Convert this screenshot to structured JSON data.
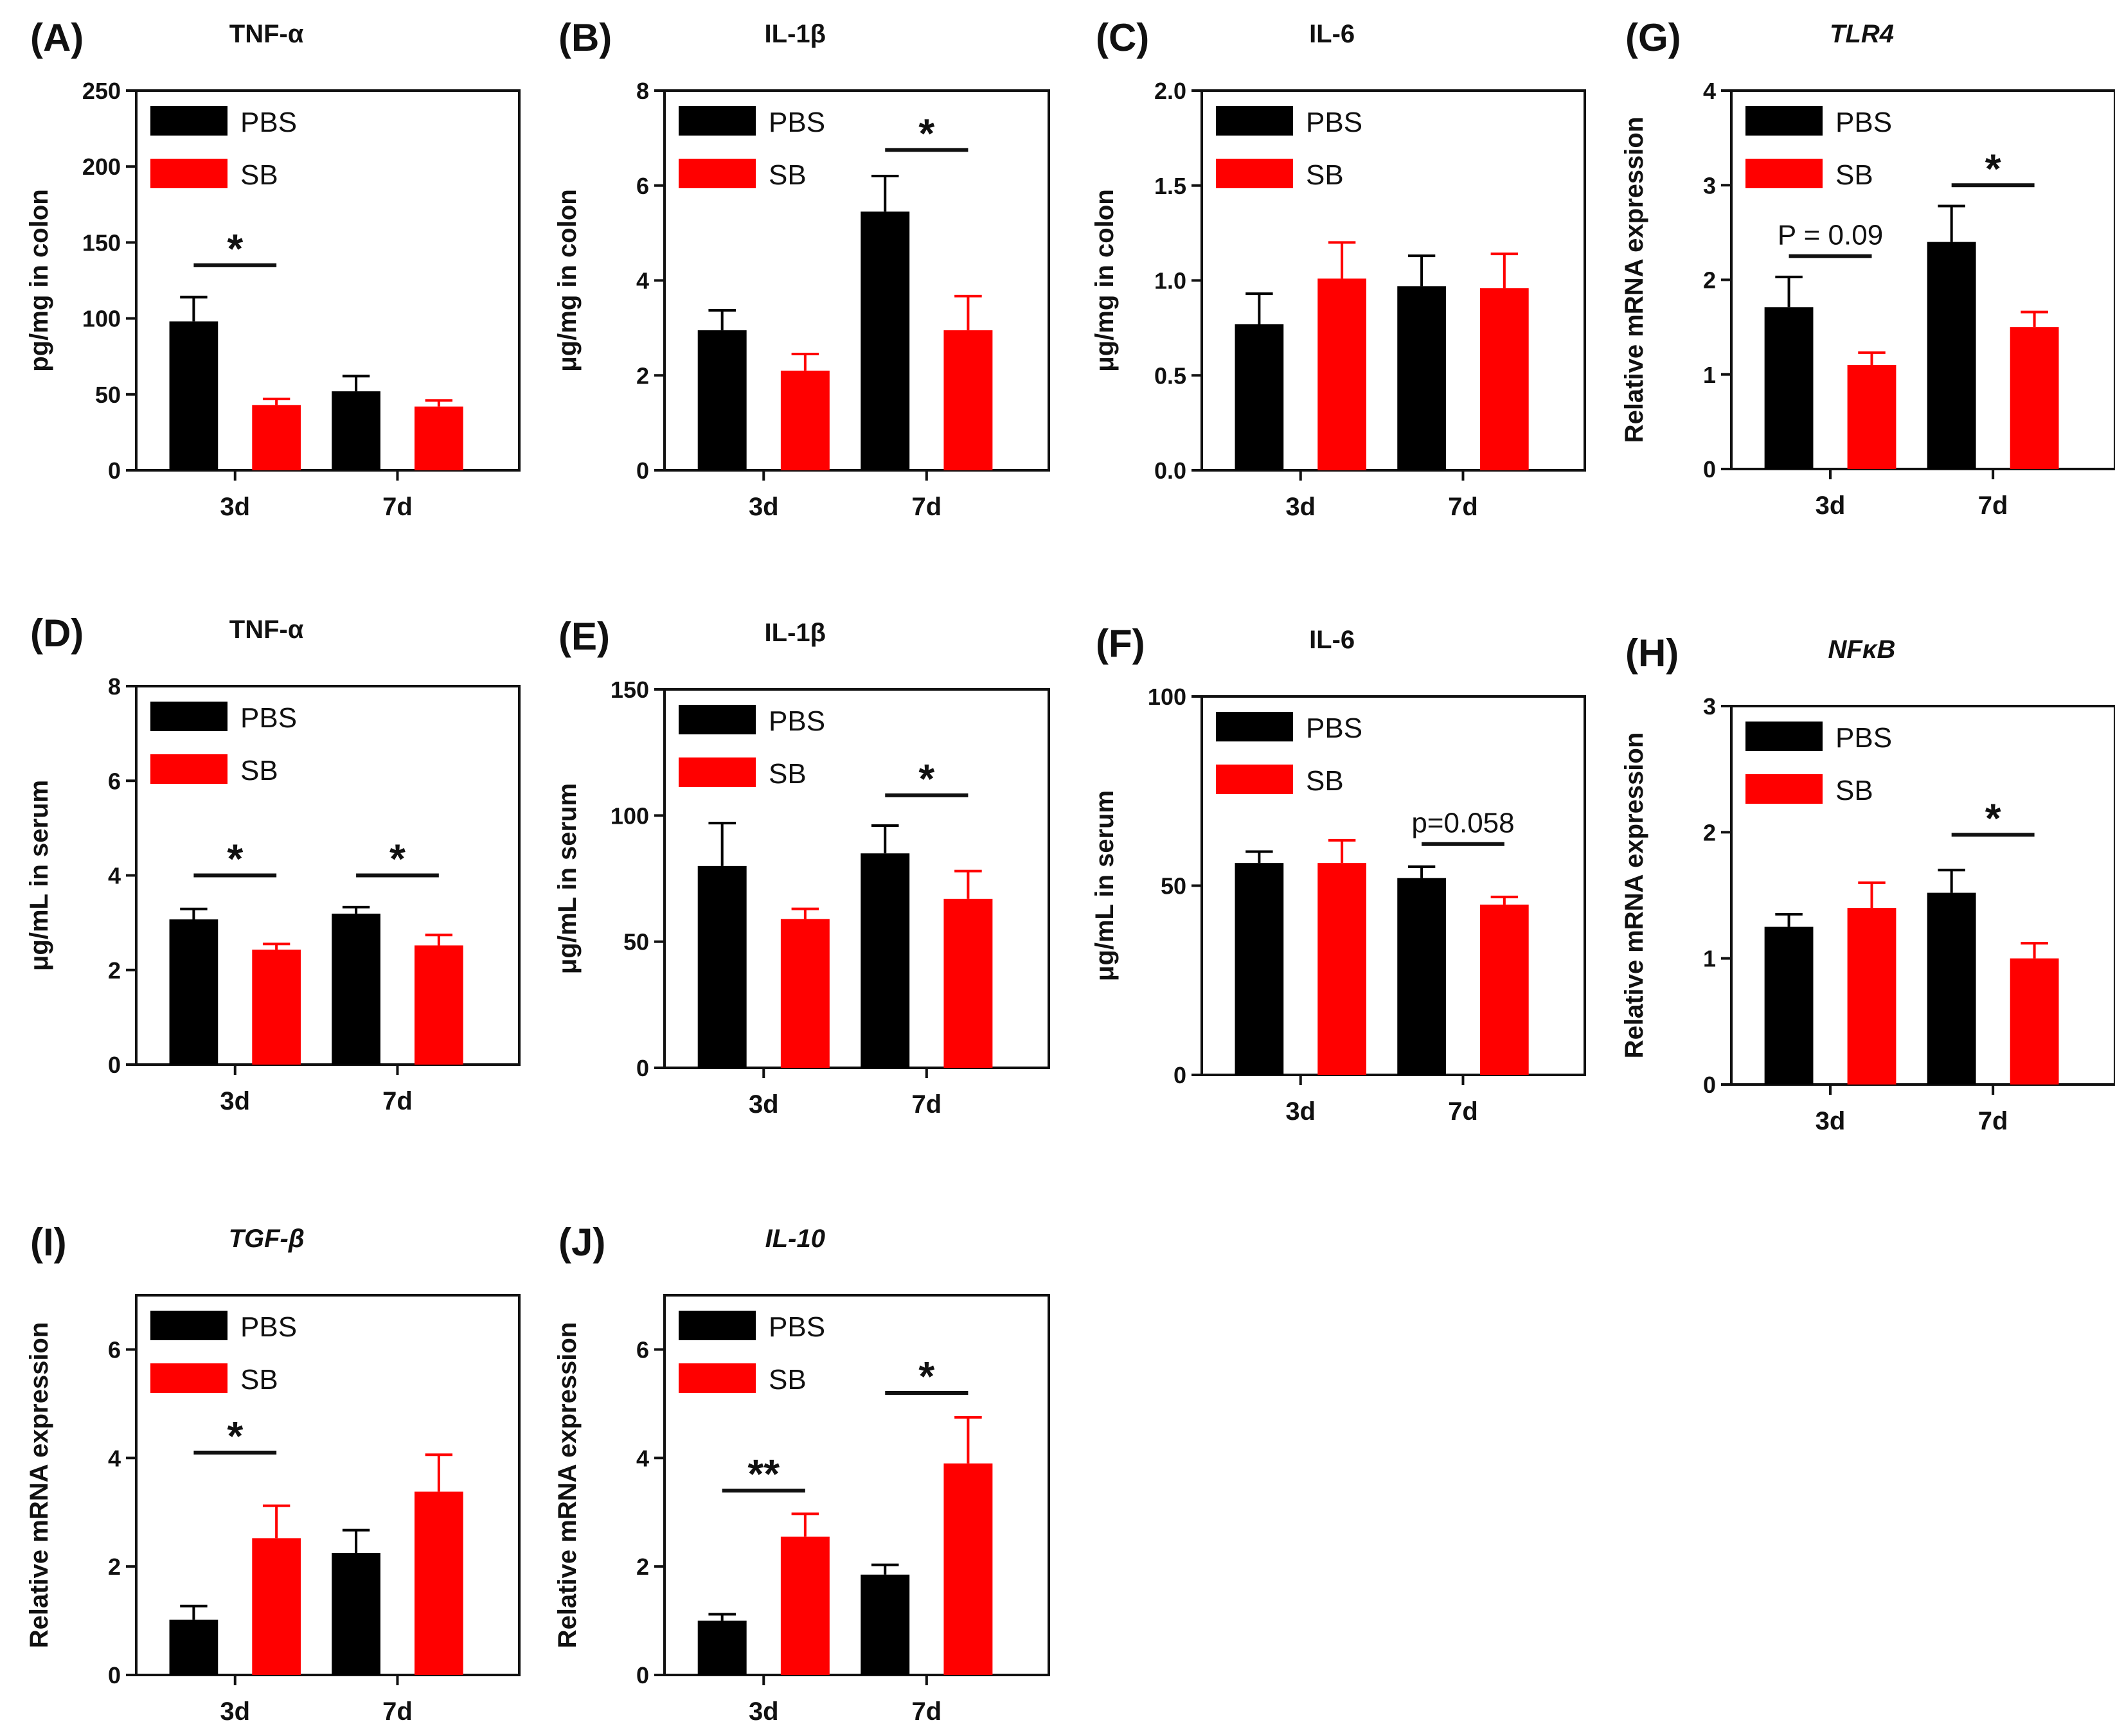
{
  "colors": {
    "PBS": "#000000",
    "SB": "#ff0000",
    "axis": "#111111"
  },
  "chart_data": [
    {
      "id": "A",
      "panel_label": "(A)",
      "title": "TNF-α",
      "title_italic": false,
      "type": "bar",
      "ylabel": "pg/mg in colon",
      "xlabel": "",
      "ylim": [
        0,
        250
      ],
      "yticks": [
        0,
        50,
        100,
        150,
        200,
        250
      ],
      "ytick_labels": [
        "0",
        "50",
        "100",
        "150",
        "200",
        "250"
      ],
      "categories": [
        "3d",
        "7d"
      ],
      "legend": [
        "PBS",
        "SB"
      ],
      "series": [
        {
          "name": "PBS",
          "values": [
            98,
            52
          ],
          "errors": [
            16,
            10
          ]
        },
        {
          "name": "SB",
          "values": [
            43,
            42
          ],
          "errors": [
            4,
            4
          ]
        }
      ],
      "significance": [
        {
          "category": "3d",
          "label": "*",
          "y": 135
        }
      ]
    },
    {
      "id": "B",
      "panel_label": "(B)",
      "title": "IL-1β",
      "title_italic": false,
      "type": "bar",
      "ylabel": "μg/mg in colon",
      "xlabel": "",
      "ylim": [
        0,
        8
      ],
      "yticks": [
        0,
        2,
        4,
        6,
        8
      ],
      "ytick_labels": [
        "0",
        "2",
        "4",
        "6",
        "8"
      ],
      "categories": [
        "3d",
        "7d"
      ],
      "legend": [
        "PBS",
        "SB"
      ],
      "series": [
        {
          "name": "PBS",
          "values": [
            2.95,
            5.45
          ],
          "errors": [
            0.42,
            0.75
          ]
        },
        {
          "name": "SB",
          "values": [
            2.1,
            2.95
          ],
          "errors": [
            0.35,
            0.72
          ]
        }
      ],
      "significance": [
        {
          "category": "7d",
          "label": "*",
          "y": 6.75
        }
      ]
    },
    {
      "id": "C",
      "panel_label": "(C)",
      "title": "IL-6",
      "title_italic": false,
      "type": "bar",
      "ylabel": "μg/mg in colon",
      "xlabel": "",
      "ylim": [
        0,
        2.0
      ],
      "yticks": [
        0,
        0.5,
        1.0,
        1.5,
        2.0
      ],
      "ytick_labels": [
        "0.0",
        "0.5",
        "1.0",
        "1.5",
        "2.0"
      ],
      "categories": [
        "3d",
        "7d"
      ],
      "legend": [
        "PBS",
        "SB"
      ],
      "series": [
        {
          "name": "PBS",
          "values": [
            0.77,
            0.97
          ],
          "errors": [
            0.16,
            0.16
          ]
        },
        {
          "name": "SB",
          "values": [
            1.01,
            0.96
          ],
          "errors": [
            0.19,
            0.18
          ]
        }
      ],
      "significance": []
    },
    {
      "id": "G",
      "panel_label": "(G)",
      "title": "TLR4",
      "title_italic": true,
      "type": "bar",
      "ylabel": "Relative mRNA expression",
      "xlabel": "",
      "ylim": [
        0,
        4
      ],
      "yticks": [
        0,
        1,
        2,
        3,
        4
      ],
      "ytick_labels": [
        "0",
        "1",
        "2",
        "3",
        "4"
      ],
      "categories": [
        "3d",
        "7d"
      ],
      "legend": [
        "PBS",
        "SB"
      ],
      "series": [
        {
          "name": "PBS",
          "values": [
            1.71,
            2.4
          ],
          "errors": [
            0.32,
            0.38
          ]
        },
        {
          "name": "SB",
          "values": [
            1.1,
            1.5
          ],
          "errors": [
            0.13,
            0.16
          ]
        }
      ],
      "significance": [
        {
          "category": "3d",
          "label": "P = 0.09",
          "y": 2.25
        },
        {
          "category": "7d",
          "label": "*",
          "y": 3.0
        }
      ]
    },
    {
      "id": "D",
      "panel_label": "(D)",
      "title": "TNF-α",
      "title_italic": false,
      "type": "bar",
      "ylabel": "μg/mL in serum",
      "xlabel": "",
      "ylim": [
        0,
        8
      ],
      "yticks": [
        0,
        2,
        4,
        6,
        8
      ],
      "ytick_labels": [
        "0",
        "2",
        "4",
        "6",
        "8"
      ],
      "categories": [
        "3d",
        "7d"
      ],
      "legend": [
        "PBS",
        "SB"
      ],
      "series": [
        {
          "name": "PBS",
          "values": [
            3.07,
            3.19
          ],
          "errors": [
            0.22,
            0.14
          ]
        },
        {
          "name": "SB",
          "values": [
            2.43,
            2.52
          ],
          "errors": [
            0.12,
            0.22
          ]
        }
      ],
      "significance": [
        {
          "category": "3d",
          "label": "*",
          "y": 4.0
        },
        {
          "category": "7d",
          "label": "*",
          "y": 4.0
        }
      ]
    },
    {
      "id": "E",
      "panel_label": "(E)",
      "title": "IL-1β",
      "title_italic": false,
      "type": "bar",
      "ylabel": "μg/mL in serum",
      "xlabel": "",
      "ylim": [
        0,
        150
      ],
      "yticks": [
        0,
        50,
        100,
        150
      ],
      "ytick_labels": [
        "0",
        "50",
        "100",
        "150"
      ],
      "categories": [
        "3d",
        "7d"
      ],
      "legend": [
        "PBS",
        "SB"
      ],
      "series": [
        {
          "name": "PBS",
          "values": [
            80,
            85
          ],
          "errors": [
            17,
            11
          ]
        },
        {
          "name": "SB",
          "values": [
            59,
            67
          ],
          "errors": [
            4,
            11
          ]
        }
      ],
      "significance": [
        {
          "category": "7d",
          "label": "*",
          "y": 108
        }
      ]
    },
    {
      "id": "F",
      "panel_label": "(F)",
      "title": "IL-6",
      "title_italic": false,
      "type": "bar",
      "ylabel": "μg/mL in serum",
      "xlabel": "",
      "ylim": [
        0,
        100
      ],
      "yticks": [
        0,
        50,
        100
      ],
      "ytick_labels": [
        "0",
        "50",
        "100"
      ],
      "categories": [
        "3d",
        "7d"
      ],
      "legend": [
        "PBS",
        "SB"
      ],
      "series": [
        {
          "name": "PBS",
          "values": [
            56,
            52
          ],
          "errors": [
            3,
            3
          ]
        },
        {
          "name": "SB",
          "values": [
            56,
            45
          ],
          "errors": [
            6,
            2
          ]
        }
      ],
      "significance": [
        {
          "category": "7d",
          "label": "p=0.058",
          "y": 61
        }
      ]
    },
    {
      "id": "H",
      "panel_label": "(H)",
      "title": "NFκB",
      "title_italic": true,
      "type": "bar",
      "ylabel": "Relative mRNA expression",
      "xlabel": "",
      "ylim": [
        0,
        3
      ],
      "yticks": [
        0,
        1,
        2,
        3
      ],
      "ytick_labels": [
        "0",
        "1",
        "2",
        "3"
      ],
      "categories": [
        "3d",
        "7d"
      ],
      "legend": [
        "PBS",
        "SB"
      ],
      "series": [
        {
          "name": "PBS",
          "values": [
            1.25,
            1.52
          ],
          "errors": [
            0.1,
            0.18
          ]
        },
        {
          "name": "SB",
          "values": [
            1.4,
            1.0
          ],
          "errors": [
            0.2,
            0.12
          ]
        }
      ],
      "significance": [
        {
          "category": "7d",
          "label": "*",
          "y": 1.98
        }
      ]
    },
    {
      "id": "I",
      "panel_label": "(I)",
      "title": "TGF-β",
      "title_italic": true,
      "type": "bar",
      "ylabel": "Relative mRNA expression",
      "xlabel": "",
      "ylim": [
        0,
        7
      ],
      "yticks": [
        0,
        2,
        4,
        6
      ],
      "ytick_labels": [
        "0",
        "2",
        "4",
        "6"
      ],
      "categories": [
        "3d",
        "7d"
      ],
      "legend": [
        "PBS",
        "SB"
      ],
      "series": [
        {
          "name": "PBS",
          "values": [
            1.02,
            2.25
          ],
          "errors": [
            0.25,
            0.42
          ]
        },
        {
          "name": "SB",
          "values": [
            2.52,
            3.38
          ],
          "errors": [
            0.6,
            0.68
          ]
        }
      ],
      "significance": [
        {
          "category": "3d",
          "label": "*",
          "y": 4.1
        }
      ]
    },
    {
      "id": "J",
      "panel_label": "(J)",
      "title": "IL-10",
      "title_italic": true,
      "type": "bar",
      "ylabel": "Relative mRNA expression",
      "xlabel": "",
      "ylim": [
        0,
        7
      ],
      "yticks": [
        0,
        2,
        4,
        6
      ],
      "ytick_labels": [
        "0",
        "2",
        "4",
        "6"
      ],
      "categories": [
        "3d",
        "7d"
      ],
      "legend": [
        "PBS",
        "SB"
      ],
      "series": [
        {
          "name": "PBS",
          "values": [
            1.0,
            1.85
          ],
          "errors": [
            0.12,
            0.18
          ]
        },
        {
          "name": "SB",
          "values": [
            2.55,
            3.9
          ],
          "errors": [
            0.42,
            0.85
          ]
        }
      ],
      "significance": [
        {
          "category": "3d",
          "label": "**",
          "y": 3.4
        },
        {
          "category": "7d",
          "label": "*",
          "y": 5.2
        }
      ]
    }
  ]
}
